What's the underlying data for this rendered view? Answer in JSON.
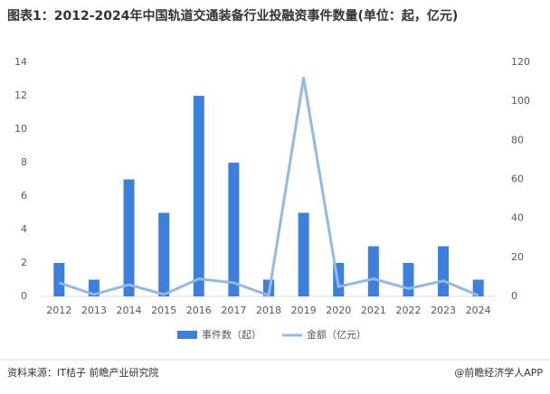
{
  "chart_data": {
    "type": "bar",
    "title": "图表1：2012-2024年中国轨道交通装备行业投融资事件数量(单位：起，亿元)",
    "categories": [
      "2012",
      "2013",
      "2014",
      "2015",
      "2016",
      "2017",
      "2018",
      "2019",
      "2020",
      "2021",
      "2022",
      "2023",
      "2024"
    ],
    "series": [
      {
        "name": "事件数（起）",
        "color": "#3c7fdc",
        "values": [
          2,
          1,
          7,
          5,
          12,
          8,
          1,
          5,
          2,
          3,
          2,
          3,
          1
        ]
      },
      {
        "name": "金额（亿元）",
        "color": "#93b8ea",
        "axis": "y2",
        "values": [
          7,
          1,
          6,
          1,
          9,
          7,
          0.5,
          112,
          5,
          9,
          4,
          8,
          0.5
        ]
      }
    ],
    "ylim": [
      0,
      14
    ],
    "yticks": [
      0,
      2,
      4,
      6,
      8,
      10,
      12,
      14
    ],
    "y2lim": [
      0,
      120
    ],
    "y2ticks": [
      0,
      20,
      40,
      60,
      80,
      100,
      120
    ],
    "source": "资料来源：IT桔子 前瞻产业研究院",
    "credit": "@前瞻经济学人APP"
  }
}
